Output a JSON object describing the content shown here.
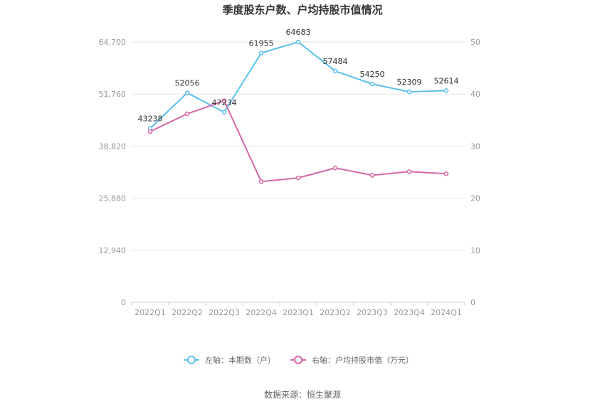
{
  "chart_data": {
    "type": "line",
    "title": "季度股东户数、户均持股市值情况",
    "categories": [
      "2022Q1",
      "2022Q2",
      "2022Q3",
      "2022Q4",
      "2023Q1",
      "2023Q2",
      "2023Q3",
      "2023Q4",
      "2024Q1"
    ],
    "left_axis": {
      "ticks": [
        "0",
        "12,940",
        "25,880",
        "38,820",
        "51,760",
        "64,700"
      ],
      "ylim": [
        0,
        64700
      ]
    },
    "right_axis": {
      "ticks": [
        "0",
        "10",
        "20",
        "30",
        "40",
        "50"
      ],
      "ylim": [
        0,
        50
      ]
    },
    "series": [
      {
        "name": "左轴：本期数（户）",
        "axis": "left",
        "color": "#5bc0eb",
        "values": [
          43238,
          52056,
          47234,
          61955,
          64683,
          57484,
          54250,
          52309,
          52614
        ],
        "labels": [
          "43238",
          "52056",
          "47234",
          "61955",
          "64683",
          "57484",
          "54250",
          "52309",
          "52614"
        ]
      },
      {
        "name": "右轴：户均持股市值（万元）",
        "axis": "right",
        "color": "#d667a8",
        "values": [
          32.8,
          36.2,
          38.7,
          23.2,
          23.9,
          25.8,
          24.4,
          25.1,
          24.7
        ]
      }
    ],
    "grid": true,
    "legend_position": "bottom"
  },
  "source": "数据来源：恒生聚源"
}
